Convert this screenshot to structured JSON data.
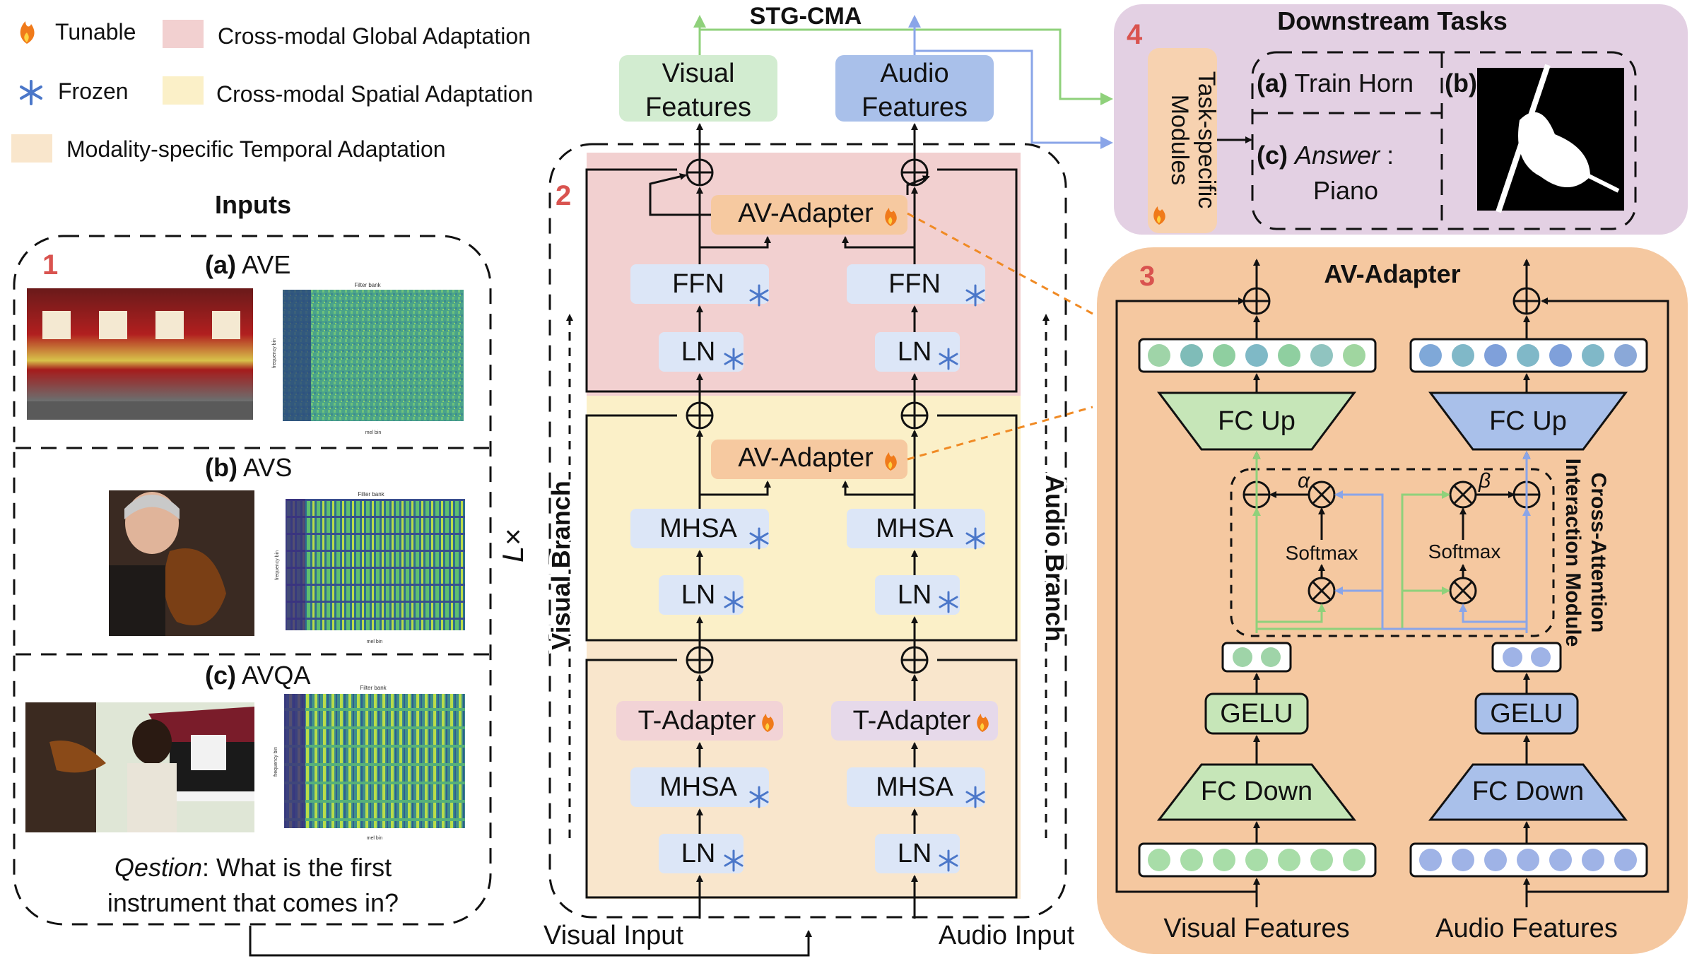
{
  "legend": {
    "tunable": "Tunable",
    "frozen": "Frozen",
    "global": "Cross-modal Global Adaptation",
    "spatial": "Cross-modal Spatial Adaptation",
    "temporal": "Modality-specific Temporal Adaptation"
  },
  "colors": {
    "global_bg": "#f2d0d0",
    "spatial_bg": "#fbf0c8",
    "temporal_bg": "#f9e6cc",
    "downstream_bg": "#e3d0e3",
    "adapter_bg": "#f5c8a0",
    "visual_green": "#d2ecd0",
    "audio_blue": "#a9c0ea",
    "block_blue": "#dce6f7",
    "av_adapter_fill": "#f6c9a0",
    "t_adapter_visual": "#f2d3d6",
    "t_adapter_audio": "#e6d9ea",
    "orange_dash": "#f08a24",
    "green_arrow": "#8fd17b",
    "blue_arrow": "#8aa5e8",
    "panel_number": "#d9534f"
  },
  "inputs": {
    "title": "Inputs",
    "number": "1",
    "ave": {
      "prefix": "(a)",
      "name": "AVE"
    },
    "avs": {
      "prefix": "(b)",
      "name": "AVS"
    },
    "avqa": {
      "prefix": "(c)",
      "name": "AVQA"
    },
    "spectrogram_title": "Filter bank",
    "spectrogram_xlabel": "mel bin",
    "spectrogram_ylabel": "frequency bin",
    "question_label": "Qestion",
    "question_line1": ": What is the first",
    "question_line2": "instrument that comes in?"
  },
  "center": {
    "title": "STG-CMA",
    "number": "2",
    "visual_features": [
      "Visual",
      "Features"
    ],
    "audio_features": [
      "Audio",
      "Features"
    ],
    "av_adapter": "AV-Adapter",
    "ffn": "FFN",
    "ln": "LN",
    "mhsa": "MHSA",
    "t_adapter": "T-Adapter",
    "visual_branch": "Visual Branch",
    "audio_branch": "Audio Branch",
    "repeat": "L×",
    "visual_input": "Visual Input",
    "audio_input": "Audio Input"
  },
  "downstream": {
    "title": "Downstream Tasks",
    "number": "4",
    "module": [
      "Task-specific",
      "Modules"
    ],
    "a_prefix": "(a)",
    "a_text": "Train Horn",
    "b_prefix": "(b)",
    "c_prefix": "(c)",
    "answer_label": "Answer",
    "answer_sep": " :",
    "answer_value": "Piano"
  },
  "adapter": {
    "title": "AV-Adapter",
    "number": "3",
    "fc_up": "FC Up",
    "fc_down": "FC Down",
    "gelu": "GELU",
    "softmax": "Softmax",
    "alpha": "α",
    "beta": "β",
    "module_label": [
      "Cross-Attention",
      "Interaction Module"
    ],
    "visual_features": "Visual Features",
    "audio_features": "Audio Features"
  }
}
